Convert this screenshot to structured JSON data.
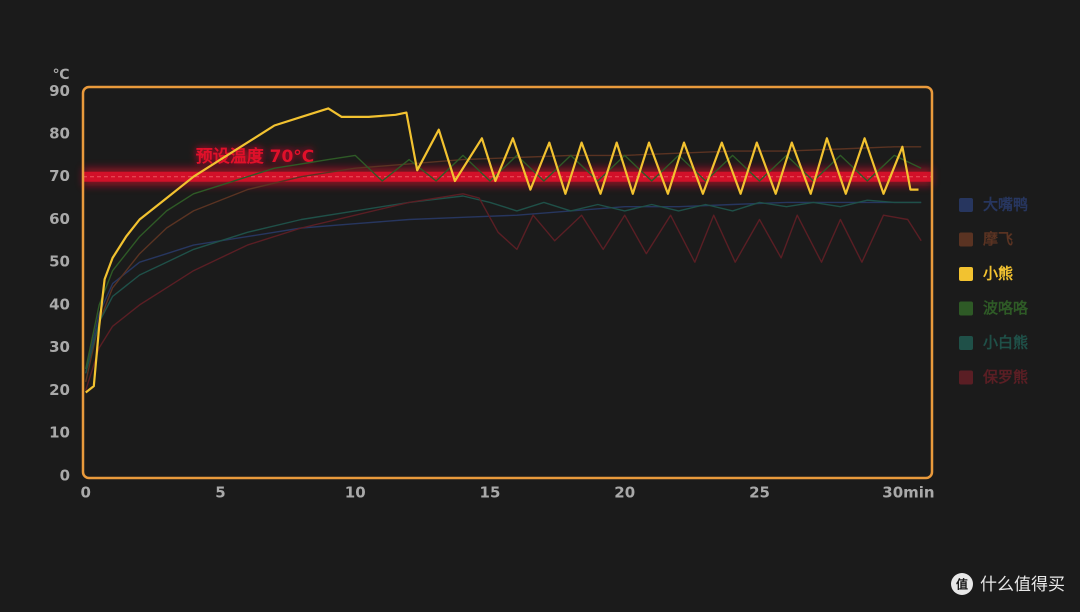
{
  "chart_data": {
    "type": "line",
    "y_unit": "℃",
    "annotation": "预设温度 70°C",
    "threshold": 70,
    "threshold_color": "#e0102a",
    "frame_color": "#e99a3c",
    "xlim": [
      -0.1,
      31.4
    ],
    "ylim": [
      -0.5,
      91
    ],
    "xticks": [
      0,
      5,
      10,
      15,
      20,
      25,
      {
        "value": 30,
        "label": "30min"
      }
    ],
    "yticks": [
      0,
      10,
      20,
      30,
      40,
      50,
      60,
      70,
      80,
      90
    ],
    "series": [
      {
        "name": "大嘴鸭",
        "color": "#27365f",
        "x": [
          0,
          0.5,
          1,
          2,
          3,
          4,
          6,
          8,
          10,
          12,
          14,
          16,
          18,
          20,
          22,
          24,
          26,
          28,
          30,
          31
        ],
        "values": [
          24,
          38,
          45,
          50,
          52,
          54,
          56,
          58,
          59,
          60,
          60.5,
          61,
          62,
          63,
          63,
          63.5,
          64,
          64,
          64,
          64
        ]
      },
      {
        "name": "摩飞",
        "color": "#5a3322",
        "x": [
          0,
          0.5,
          1,
          2,
          3,
          4,
          6,
          8,
          10,
          12,
          14,
          16,
          18,
          20,
          22,
          24,
          26,
          28,
          30,
          31
        ],
        "values": [
          22,
          36,
          44,
          52,
          58,
          62,
          67,
          70,
          72,
          73,
          74,
          74.5,
          75,
          75,
          75.5,
          76,
          76,
          76.5,
          77,
          77
        ]
      },
      {
        "name": "小熊",
        "color": "#f2c230",
        "x": [
          0,
          0.3,
          0.5,
          0.7,
          1,
          1.5,
          2,
          3,
          4,
          5,
          6,
          7,
          8,
          9,
          9.5,
          10.5,
          11.5,
          11.9,
          12.3,
          13.1,
          13.7,
          14.7,
          15.2,
          15.85,
          16.5,
          17.2,
          17.8,
          18.4,
          19.1,
          19.7,
          20.3,
          20.9,
          21.6,
          22.2,
          22.9,
          23.6,
          24.3,
          24.9,
          25.6,
          26.2,
          26.9,
          27.5,
          28.2,
          28.9,
          29.6,
          30.3,
          30.6,
          30.9
        ],
        "values": [
          19.5,
          21,
          35,
          46,
          51,
          56,
          60,
          65,
          70,
          74,
          78,
          82,
          84,
          86,
          84,
          84,
          84.5,
          85,
          71.5,
          81,
          69,
          79,
          69,
          79,
          67,
          78,
          66,
          78,
          66,
          78,
          66,
          78,
          66,
          78,
          66,
          78,
          66,
          78,
          66,
          78,
          66,
          79,
          66,
          79,
          66,
          77,
          67,
          67
        ]
      },
      {
        "name": "波咯咯",
        "color": "#2e5a26",
        "x": [
          0,
          0.5,
          1,
          2,
          3,
          4,
          5,
          6,
          7,
          8,
          9,
          10,
          11,
          12,
          13,
          14,
          15,
          16,
          17,
          18,
          19,
          20,
          21,
          22,
          23,
          24,
          25,
          26,
          27,
          28,
          29,
          30,
          31
        ],
        "values": [
          25,
          40,
          48,
          56,
          62,
          66,
          68,
          70,
          72,
          73,
          74,
          75,
          69,
          74,
          69,
          75,
          69,
          75,
          69,
          75,
          69,
          75,
          69,
          75,
          69,
          75,
          69,
          75,
          69,
          75,
          69,
          75,
          72
        ]
      },
      {
        "name": "小白熊",
        "color": "#1f5048",
        "x": [
          0,
          0.5,
          1,
          2,
          3,
          4,
          6,
          8,
          10,
          12,
          14,
          15,
          16,
          17,
          18,
          19,
          20,
          21,
          22,
          23,
          24,
          25,
          26,
          27,
          28,
          29,
          30,
          31
        ],
        "values": [
          24,
          36,
          42,
          47,
          50,
          53,
          57,
          60,
          62,
          64,
          65.5,
          64,
          62,
          64,
          62,
          63.5,
          62,
          63.5,
          62,
          63.5,
          62,
          64,
          63,
          64,
          63,
          64.5,
          64,
          64
        ]
      },
      {
        "name": "保罗熊",
        "color": "#5a1e24",
        "x": [
          0,
          0.5,
          1,
          2,
          3,
          4,
          6,
          8,
          10,
          12,
          14,
          14.6,
          15.3,
          16,
          16.6,
          17.4,
          18.4,
          19.2,
          20,
          20.8,
          21.7,
          22.6,
          23.3,
          24.1,
          25,
          25.8,
          26.4,
          27.3,
          28,
          28.8,
          29.6,
          30.5,
          31
        ],
        "values": [
          20,
          30,
          35,
          40,
          44,
          48,
          54,
          58,
          61,
          64,
          66,
          65,
          57,
          53,
          61,
          55,
          61,
          53,
          61,
          52,
          61,
          50,
          61,
          50,
          60,
          51,
          61,
          50,
          60,
          50,
          61,
          60,
          55
        ]
      }
    ]
  },
  "watermark": {
    "icon": "值",
    "text": "什么值得买"
  }
}
